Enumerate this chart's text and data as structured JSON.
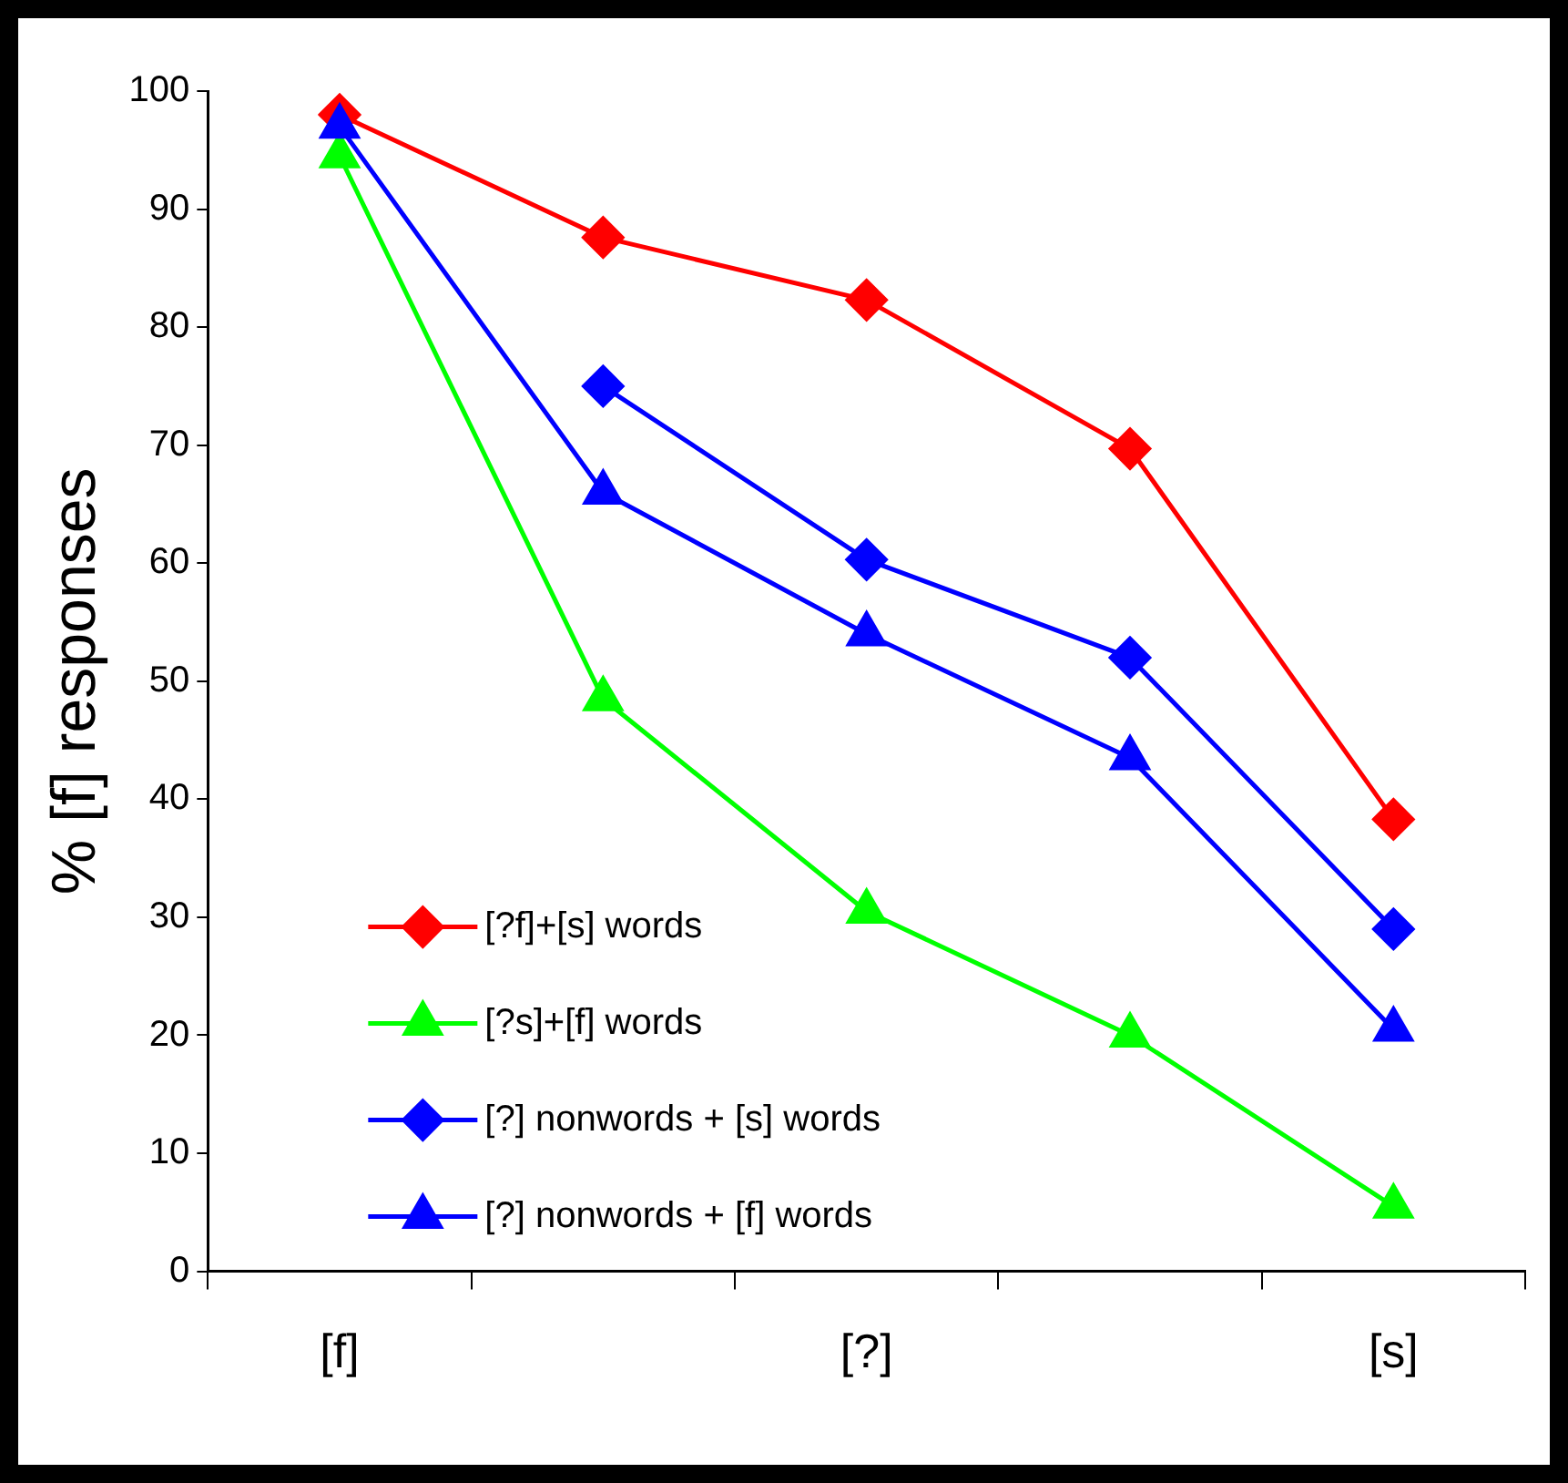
{
  "chart_data": {
    "type": "line",
    "ylabel": "% [f] responses",
    "categories": [
      "[f]",
      null,
      "[?]",
      null,
      "[s]"
    ],
    "ylim": [
      0,
      100
    ],
    "yticks": [
      0,
      10,
      20,
      30,
      40,
      50,
      60,
      70,
      80,
      90,
      100
    ],
    "grid": false,
    "legend": "bottom left",
    "line_style": "solid",
    "series": [
      {
        "name": "[?f]+[s] words",
        "color": "#ff0000",
        "marker": "diamond",
        "values": [
          98,
          87.6,
          82.3,
          69.7,
          38.3
        ]
      },
      {
        "name": "[?s]+[f] words",
        "color": "#00ff00",
        "marker": "triangle",
        "values": [
          94.5,
          48.5,
          30.5,
          20,
          5.5
        ]
      },
      {
        "name": "[?] nonwords + [s] words",
        "color": "#0000ff",
        "marker": "diamond",
        "values": [
          null,
          75,
          60.3,
          52,
          29
        ]
      },
      {
        "name": "[?] nonwords + [f] words",
        "color": "#0000ff",
        "marker": "triangle",
        "values": [
          97,
          66,
          54,
          43.5,
          20.5
        ]
      }
    ]
  }
}
